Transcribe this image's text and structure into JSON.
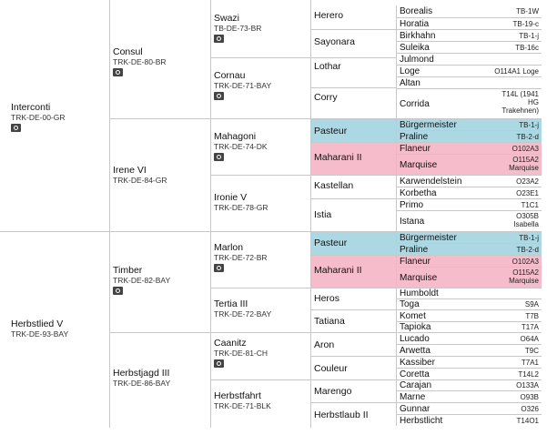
{
  "pedigree": [
    {
      "id": "g1a",
      "name": "Interconti",
      "reg": "TRK-DE-00-GR",
      "photo": true
    },
    {
      "id": "g1b",
      "name": "Herbstlied V",
      "reg": "TRK-DE-93-BAY",
      "photo": false
    },
    {
      "id": "g2a",
      "name": "Consul",
      "reg": "TRK-DE-80-BR",
      "photo": true
    },
    {
      "id": "g2b",
      "name": "Irene VI",
      "reg": "TRK-DE-84-GR",
      "photo": false
    },
    {
      "id": "g2c",
      "name": "Timber",
      "reg": "TRK-DE-82-BAY",
      "photo": true
    },
    {
      "id": "g2d",
      "name": "Herbstjagd III",
      "reg": "TRK-DE-86-BAY",
      "photo": false
    },
    {
      "id": "g3a",
      "name": "Swazi",
      "reg": "TB-DE-73-BR",
      "photo": true
    },
    {
      "id": "g3b",
      "name": "Cornau",
      "reg": "TRK-DE-71-BAY",
      "photo": true
    },
    {
      "id": "g3c",
      "name": "Mahagoni",
      "reg": "TRK-DE-74-DK",
      "photo": true
    },
    {
      "id": "g3d",
      "name": "Ironie V",
      "reg": "TRK-DE-78-GR",
      "photo": false
    },
    {
      "id": "g3e",
      "name": "Marlon",
      "reg": "TRK-DE-72-BR",
      "photo": true
    },
    {
      "id": "g3f",
      "name": "Tertia III",
      "reg": "TRK-DE-72-BAY",
      "photo": false
    },
    {
      "id": "g3g",
      "name": "Caanitz",
      "reg": "TRK-DE-81-CH",
      "photo": true
    },
    {
      "id": "g3h",
      "name": "Herbstfahrt",
      "reg": "TRK-DE-71-BLK",
      "photo": false
    },
    {
      "id": "g4a",
      "name": "Herero",
      "color": ""
    },
    {
      "id": "g4b",
      "name": "Sayonara",
      "color": ""
    },
    {
      "id": "g4c",
      "name": "Lothar",
      "color": ""
    },
    {
      "id": "g4d",
      "name": "Corry",
      "color": ""
    },
    {
      "id": "g4e",
      "name": "Pasteur",
      "color": "#acd8e4"
    },
    {
      "id": "g4f",
      "name": "Maharani II",
      "color": "#f7bccb"
    },
    {
      "id": "g4g",
      "name": "Kastellan",
      "color": ""
    },
    {
      "id": "g4h",
      "name": "Istia",
      "color": ""
    },
    {
      "id": "g4i",
      "name": "Pasteur",
      "color": "#acd8e4"
    },
    {
      "id": "g4j",
      "name": "Maharani II",
      "color": "#f7bccb"
    },
    {
      "id": "g4k",
      "name": "Heros",
      "color": ""
    },
    {
      "id": "g4l",
      "name": "Tatiana",
      "color": ""
    },
    {
      "id": "g4m",
      "name": "Aron",
      "color": ""
    },
    {
      "id": "g4n",
      "name": "Couleur",
      "color": ""
    },
    {
      "id": "g4o",
      "name": "Marengo",
      "color": ""
    },
    {
      "id": "g4p",
      "name": "Herbstlaub II",
      "color": ""
    },
    {
      "id": "g5_1",
      "name": "Borealis",
      "reg": "TB-1W",
      "color": ""
    },
    {
      "id": "g5_2",
      "name": "Horatia",
      "reg": "TB-19-c",
      "color": ""
    },
    {
      "id": "g5_3",
      "name": "Birkhahn",
      "reg": "TB-1-j",
      "color": ""
    },
    {
      "id": "g5_4",
      "name": "Suleika",
      "reg": "TB-16c",
      "color": ""
    },
    {
      "id": "g5_5",
      "name": "Julmond",
      "reg": "",
      "color": ""
    },
    {
      "id": "g5_6",
      "name": "Loge",
      "reg": "O114A1 Loge",
      "color": ""
    },
    {
      "id": "g5_7",
      "name": "Altan",
      "reg": "",
      "color": ""
    },
    {
      "id": "g5_8",
      "name": "Corrida",
      "reg": "T14L (1941 HG Trakehnen)",
      "color": ""
    },
    {
      "id": "g5_9",
      "name": "Bürgermeister",
      "reg": "TB-1-j",
      "color": "#acd8e4"
    },
    {
      "id": "g5_10",
      "name": "Praline",
      "reg": "TB-2-d",
      "color": "#acd8e4"
    },
    {
      "id": "g5_11",
      "name": "Flaneur",
      "reg": "O102A3",
      "color": "#f7bccb"
    },
    {
      "id": "g5_12",
      "name": "Marquise",
      "reg": "O115A2 Marquise",
      "color": "#f7bccb"
    },
    {
      "id": "g5_13",
      "name": "Karwendelstein",
      "reg": "O23A2",
      "color": ""
    },
    {
      "id": "g5_14",
      "name": "Korbetha",
      "reg": "O23E1",
      "color": ""
    },
    {
      "id": "g5_15",
      "name": "Primo",
      "reg": "T1C1",
      "color": ""
    },
    {
      "id": "g5_16",
      "name": "Istana",
      "reg": "O305B Isabella",
      "color": ""
    },
    {
      "id": "g5_17",
      "name": "Bürgermeister",
      "reg": "TB-1-j",
      "color": "#acd8e4"
    },
    {
      "id": "g5_18",
      "name": "Praline",
      "reg": "TB-2-d",
      "color": "#acd8e4"
    },
    {
      "id": "g5_19",
      "name": "Flaneur",
      "reg": "O102A3",
      "color": "#f7bccb"
    },
    {
      "id": "g5_20",
      "name": "Marquise",
      "reg": "O115A2 Marquise",
      "color": "#f7bccb"
    },
    {
      "id": "g5_21",
      "name": "Humboldt",
      "reg": "",
      "color": ""
    },
    {
      "id": "g5_22",
      "name": "Toga",
      "reg": "S9A",
      "color": ""
    },
    {
      "id": "g5_23",
      "name": "Komet",
      "reg": "T7B",
      "color": ""
    },
    {
      "id": "g5_24",
      "name": "Tapioka",
      "reg": "T17A",
      "color": ""
    },
    {
      "id": "g5_25",
      "name": "Lucado",
      "reg": "O64A",
      "color": ""
    },
    {
      "id": "g5_26",
      "name": "Arwetta",
      "reg": "T9C",
      "color": ""
    },
    {
      "id": "g5_27",
      "name": "Kassiber",
      "reg": "T7A1",
      "color": ""
    },
    {
      "id": "g5_28",
      "name": "Coretta",
      "reg": "T14L2",
      "color": ""
    },
    {
      "id": "g5_29",
      "name": "Carajan",
      "reg": "O133A",
      "color": ""
    },
    {
      "id": "g5_30",
      "name": "Marne",
      "reg": "O93B",
      "color": ""
    },
    {
      "id": "g5_31",
      "name": "Gunnar",
      "reg": "O326",
      "color": ""
    },
    {
      "id": "g5_32",
      "name": "Herbstlicht",
      "reg": "T14O1",
      "color": ""
    }
  ]
}
